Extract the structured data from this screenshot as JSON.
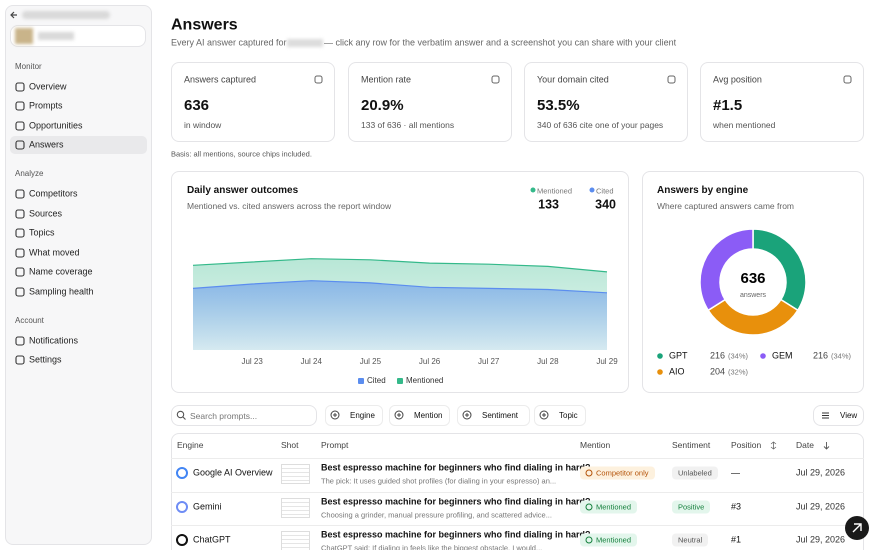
{
  "sidebar": {
    "sections": [
      {
        "title": "Monitor",
        "items": [
          {
            "label": "Overview"
          },
          {
            "label": "Prompts"
          },
          {
            "label": "Opportunities"
          },
          {
            "label": "Answers",
            "active": true
          }
        ]
      },
      {
        "title": "Analyze",
        "items": [
          {
            "label": "Competitors"
          },
          {
            "label": "Sources"
          },
          {
            "label": "Topics"
          },
          {
            "label": "What moved"
          },
          {
            "label": "Name coverage"
          },
          {
            "label": "Sampling health"
          }
        ]
      },
      {
        "title": "Account",
        "items": [
          {
            "label": "Notifications"
          },
          {
            "label": "Settings"
          }
        ]
      }
    ]
  },
  "header": {
    "title": "Answers",
    "subtitle_start": "Every AI answer captured for",
    "subtitle_end": "— click any row for the verbatim answer and a screenshot you can share with your client"
  },
  "kpis": [
    {
      "label": "Answers captured",
      "value": "636",
      "sub": "in window"
    },
    {
      "label": "Mention rate",
      "value": "20.9%",
      "sub": "133 of 636 · all mentions"
    },
    {
      "label": "Your domain cited",
      "value": "53.5%",
      "sub": "340 of 636 cite one of your pages"
    },
    {
      "label": "Avg position",
      "value": "#1.5",
      "sub": "when mentioned"
    }
  ],
  "basis_note": "Basis: all mentions, source chips included.",
  "chart_data": [
    {
      "type": "area",
      "title": "Daily answer outcomes",
      "subtitle": "Mentioned vs. cited answers across the report window",
      "categories": [
        null,
        "Jul 23",
        "Jul 24",
        "Jul 25",
        "Jul 26",
        "Jul 27",
        "Jul 28",
        "Jul 29"
      ],
      "ylim": [
        0,
        100
      ],
      "series": [
        {
          "name": "Cited",
          "color": "#5b8def",
          "total": 340,
          "values": [
            56,
            60,
            63,
            61,
            57,
            56,
            55,
            52
          ]
        },
        {
          "name": "Mentioned",
          "color": "#34b98a",
          "total": 133,
          "values": [
            77,
            80,
            83,
            82,
            79,
            78,
            76,
            71
          ]
        }
      ]
    },
    {
      "type": "donut",
      "title": "Answers by engine",
      "subtitle": "Where captured answers came from",
      "center_value": "636",
      "center_label": "answers",
      "categories": [
        "GPT",
        "AIO",
        "GEM"
      ],
      "values": [
        216,
        204,
        216
      ],
      "percent_labels": [
        "(34%)",
        "(32%)",
        "(34%)"
      ],
      "colors": [
        "#1aa37a",
        "#e8900c",
        "#8b5cf6"
      ]
    }
  ],
  "filters": {
    "search_placeholder": "Search prompts...",
    "chips": [
      "Engine",
      "Mention",
      "Sentiment",
      "Topic"
    ],
    "view": "View"
  },
  "table": {
    "columns": [
      "Engine",
      "Shot",
      "Prompt",
      "Mention",
      "Sentiment",
      "Position",
      "Date"
    ],
    "rows": [
      {
        "engine": "Google AI Overview",
        "prompt": "Best espresso machine for beginners who find dialing in hard?",
        "snippet": "The pick: It uses guided shot profiles (for dialing in your espresso) an...",
        "mention": "Competitor only",
        "sentiment": "Unlabeled",
        "position": "—",
        "date": "Jul 29, 2026"
      },
      {
        "engine": "Gemini",
        "prompt": "Best espresso machine for beginners who find dialing in hard?",
        "snippet": "Choosing a grinder, manual pressure profiling, and scattered advice...",
        "mention": "Mentioned",
        "sentiment": "Positive",
        "position": "#3",
        "date": "Jul 29, 2026"
      },
      {
        "engine": "ChatGPT",
        "prompt": "Best espresso machine for beginners who find dialing in hard?",
        "snippet": "ChatGPT said: If dialing in feels like the biggest obstacle, I would...",
        "mention": "Mentioned",
        "sentiment": "Neutral",
        "position": "#1",
        "date": "Jul 29, 2026"
      }
    ]
  }
}
